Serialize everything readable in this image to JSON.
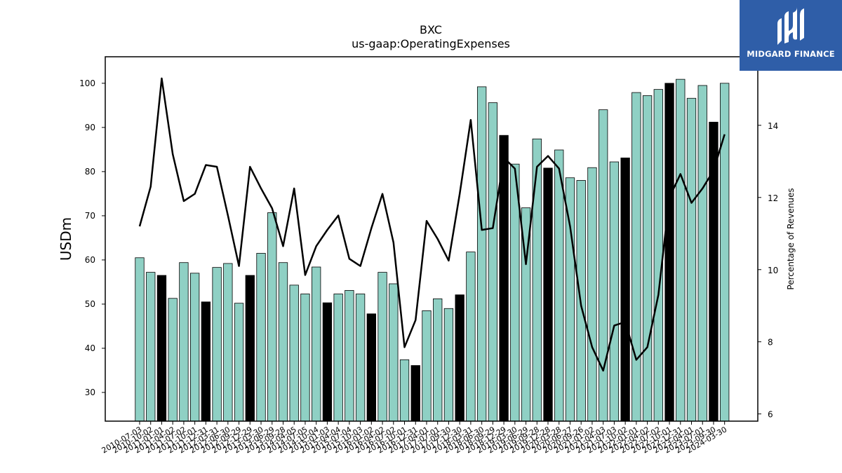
{
  "chart_data": {
    "type": "bar",
    "title": "BXC",
    "subtitle": "us-gaap:OperatingExpenses",
    "ylabel": "USDm",
    "y2label": "Percentage of Revenues",
    "ylim": [
      23.5,
      106
    ],
    "y2lim": [
      5.8,
      15.9
    ],
    "yticks": [
      30,
      40,
      50,
      60,
      70,
      80,
      90,
      100
    ],
    "y2ticks": [
      6,
      8,
      10,
      12,
      14
    ],
    "grid": false,
    "legend": "none",
    "bar_color": "#8fd0c4",
    "highlight_color": "#000000",
    "line_color": "#000000",
    "categories": [
      "2010-07-03",
      "2010-10-02",
      "2011-01-01",
      "2011-04-02",
      "2011-07-02",
      "2011-10-01",
      "2011-12-31",
      "2012-03-31",
      "2012-06-30",
      "2012-09-29",
      "2012-12-29",
      "2013-03-30",
      "2013-06-29",
      "2013-09-28",
      "2014-04-05",
      "2014-07-05",
      "2014-10-04",
      "2015-01-03",
      "2015-04-04",
      "2015-07-04",
      "2015-10-03",
      "2016-01-02",
      "2016-04-02",
      "2016-07-02",
      "2016-10-01",
      "2016-12-31",
      "2017-04-01",
      "2017-07-01",
      "2017-09-30",
      "2017-12-30",
      "2018-03-31",
      "2018-06-30",
      "2018-09-29",
      "2018-12-29",
      "2019-03-30",
      "2019-06-29",
      "2019-09-28",
      "2019-12-28",
      "2020-03-28",
      "2020-06-27",
      "2020-09-26",
      "2021-01-02",
      "2021-04-03",
      "2021-07-03",
      "2021-10-02",
      "2022-01-01",
      "2022-04-02",
      "2022-07-02",
      "2022-10-01",
      "2022-12-31",
      "2023-04-01",
      "2023-07-01",
      "2023-09-30",
      "2024-03-30"
    ],
    "xticklabels_shown": [
      "2010-07-03",
      "2010-10-02",
      "2011-01-01",
      "2011-04-02",
      "2011-07-02",
      "2011-10-01",
      "2011-12-31",
      "2012-03-31",
      "2012-06-30",
      "2012-09-29",
      "2012-12-29",
      "2013-03-30",
      "2013-06-29",
      "2013-09-28",
      "2014-04-05",
      "2014-07-05",
      "2014-10-04",
      "2015-01-03",
      "2015-04-04",
      "2015-07-04",
      "2015-10-03",
      "2016-01-02",
      "2016-04-02",
      "2016-07-02",
      "2016-10-01",
      "2016-12-31",
      "2017-04-01",
      "2017-07-01",
      "2017-09-30",
      "2017-12-30",
      "2018-03-31",
      "2018-06-30",
      "2018-09-29",
      "2018-12-29",
      "2019-03-30",
      "2019-06-29",
      "2019-09-28",
      "2019-12-28",
      "2020-03-28",
      "2020-06-27",
      "2020-09-26",
      "2021-01-02",
      "2021-04-03",
      "2021-07-03",
      "2021-10-02",
      "2022-01-01",
      "2022-04-02",
      "2022-07-02",
      "2022-10-01",
      "2022-12-31",
      "2023-04-01",
      "2023-07-01",
      "2023-09-30",
      "2024-03-30"
    ],
    "bar_values": [
      60.5,
      57.2,
      56.5,
      51.3,
      59.4,
      57.0,
      50.5,
      58.3,
      59.2,
      50.2,
      56.5,
      61.5,
      70.7,
      59.4,
      54.3,
      52.3,
      58.4,
      50.3,
      52.3,
      53.1,
      52.3,
      47.8,
      57.2,
      54.6,
      37.4,
      36.1,
      48.5,
      51.2,
      49.0,
      52.1,
      61.8,
      99.2,
      95.6,
      88.2,
      81.7,
      71.8,
      87.4,
      80.8,
      84.9,
      78.6,
      78.0,
      80.9,
      94.0,
      82.2,
      83.1,
      97.9,
      97.2,
      98.6,
      100.0,
      100.9,
      96.6,
      99.5,
      91.2,
      100.0
    ],
    "highlight": [
      false,
      false,
      true,
      false,
      false,
      false,
      true,
      false,
      false,
      false,
      true,
      false,
      false,
      false,
      false,
      false,
      false,
      true,
      false,
      false,
      false,
      true,
      false,
      false,
      false,
      true,
      false,
      false,
      false,
      true,
      false,
      false,
      false,
      true,
      false,
      false,
      false,
      true,
      false,
      false,
      false,
      false,
      false,
      false,
      true,
      false,
      false,
      false,
      true,
      false,
      false,
      false,
      true,
      false
    ],
    "pct_revenues": [
      11.2,
      12.3,
      15.3,
      13.2,
      11.9,
      12.1,
      12.9,
      12.85,
      11.5,
      10.1,
      12.85,
      12.25,
      11.7,
      10.65,
      12.25,
      9.85,
      10.65,
      11.1,
      11.5,
      10.3,
      10.1,
      11.15,
      12.1,
      10.75,
      7.85,
      8.6,
      11.35,
      10.85,
      10.25,
      12.1,
      14.15,
      11.1,
      11.15,
      13.1,
      12.8,
      10.15,
      12.85,
      13.15,
      12.8,
      11.2,
      9.0,
      7.85,
      7.2,
      8.45,
      8.55,
      7.5,
      7.85,
      9.3,
      12.0,
      12.65,
      11.85,
      12.25,
      12.75,
      13.75
    ]
  },
  "logo": {
    "text": "MIDGARD FINANCE"
  }
}
